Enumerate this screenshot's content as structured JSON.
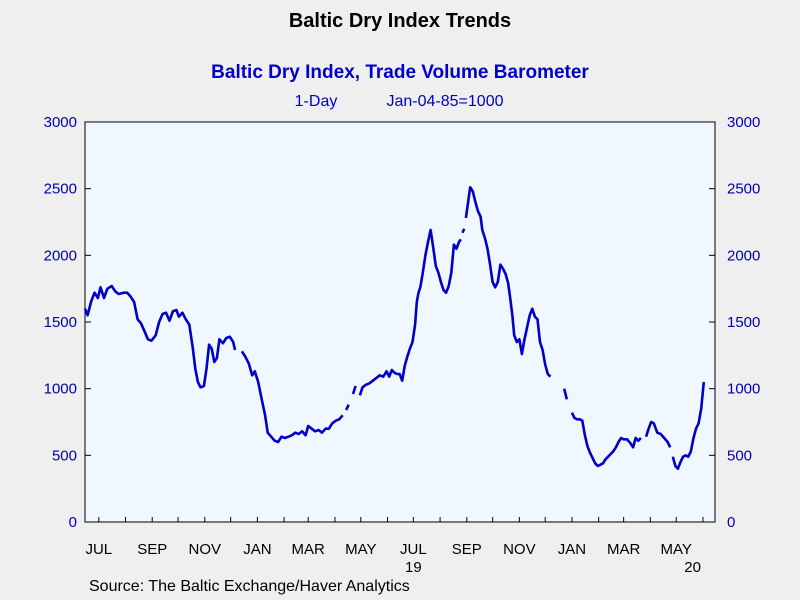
{
  "page": {
    "title": "Baltic Dry Index Trends",
    "source": "Source:  The Baltic Exchange/Haver Analytics"
  },
  "colors": {
    "background": "#efefef",
    "plot_background": "#f0f7ff",
    "series": "#0000c8",
    "title": "#000000",
    "axis_text": "#0000aa",
    "label_text": "#000000"
  },
  "chart_data": {
    "type": "line",
    "title": "Baltic Dry Index, Trade Volume Barometer",
    "subtitle_freq": "1-Day",
    "subtitle_base": "Jan-04-85=1000",
    "xlabel": "",
    "ylabel": "",
    "ylim": [
      0,
      3000
    ],
    "yticks": [
      0,
      500,
      1000,
      1500,
      2000,
      2500,
      3000
    ],
    "dual_y_axis": true,
    "grid": false,
    "legend": "none",
    "x_range": [
      "2018-06-15",
      "2020-06-15"
    ],
    "x_tick_labels": [
      {
        "label": "JUL",
        "date": "2018-07-01"
      },
      {
        "label": "SEP",
        "date": "2018-09-01"
      },
      {
        "label": "NOV",
        "date": "2018-11-01"
      },
      {
        "label": "JAN",
        "date": "2019-01-01"
      },
      {
        "label": "MAR",
        "date": "2019-03-01"
      },
      {
        "label": "MAY",
        "date": "2019-05-01"
      },
      {
        "label": "JUL",
        "date": "2019-07-01"
      },
      {
        "label": "SEP",
        "date": "2019-09-01"
      },
      {
        "label": "NOV",
        "date": "2019-11-01"
      },
      {
        "label": "JAN",
        "date": "2020-01-01"
      },
      {
        "label": "MAR",
        "date": "2020-03-01"
      },
      {
        "label": "MAY",
        "date": "2020-05-01"
      }
    ],
    "year_labels": [
      {
        "label": "19",
        "date": "2019-07-01"
      },
      {
        "label": "20",
        "date": "2020-05-20"
      }
    ],
    "series": [
      {
        "segments": [
          [
            [
              "2018-06-15",
              1600
            ],
            [
              "2018-06-18",
              1550
            ],
            [
              "2018-06-22",
              1650
            ],
            [
              "2018-06-26",
              1720
            ],
            [
              "2018-06-30",
              1680
            ],
            [
              "2018-07-03",
              1760
            ],
            [
              "2018-07-07",
              1680
            ],
            [
              "2018-07-11",
              1750
            ],
            [
              "2018-07-16",
              1770
            ],
            [
              "2018-07-20",
              1730
            ],
            [
              "2018-07-24",
              1710
            ],
            [
              "2018-07-30",
              1720
            ],
            [
              "2018-08-03",
              1720
            ],
            [
              "2018-08-07",
              1690
            ],
            [
              "2018-08-11",
              1650
            ],
            [
              "2018-08-15",
              1520
            ],
            [
              "2018-08-19",
              1490
            ],
            [
              "2018-08-23",
              1430
            ],
            [
              "2018-08-27",
              1370
            ],
            [
              "2018-08-31",
              1360
            ],
            [
              "2018-09-05",
              1400
            ],
            [
              "2018-09-09",
              1500
            ],
            [
              "2018-09-13",
              1560
            ],
            [
              "2018-09-17",
              1570
            ],
            [
              "2018-09-21",
              1510
            ],
            [
              "2018-09-25",
              1580
            ],
            [
              "2018-09-29",
              1590
            ],
            [
              "2018-10-02",
              1540
            ],
            [
              "2018-10-06",
              1570
            ],
            [
              "2018-10-10",
              1520
            ],
            [
              "2018-10-14",
              1480
            ],
            [
              "2018-10-18",
              1310
            ],
            [
              "2018-10-21",
              1150
            ],
            [
              "2018-10-24",
              1050
            ],
            [
              "2018-10-27",
              1010
            ],
            [
              "2018-10-31",
              1020
            ],
            [
              "2018-11-03",
              1150
            ],
            [
              "2018-11-06",
              1330
            ],
            [
              "2018-11-09",
              1300
            ],
            [
              "2018-11-12",
              1200
            ],
            [
              "2018-11-15",
              1230
            ],
            [
              "2018-11-18",
              1370
            ],
            [
              "2018-11-22",
              1340
            ],
            [
              "2018-11-26",
              1380
            ],
            [
              "2018-11-30",
              1390
            ],
            [
              "2018-12-04",
              1350
            ],
            [
              "2018-12-06",
              1290
            ]
          ],
          [
            [
              "2018-12-14",
              1280
            ],
            [
              "2018-12-18",
              1240
            ],
            [
              "2018-12-22",
              1190
            ],
            [
              "2018-12-26",
              1100
            ],
            [
              "2018-12-29",
              1130
            ],
            [
              "2019-01-02",
              1050
            ],
            [
              "2019-01-06",
              920
            ],
            [
              "2019-01-10",
              800
            ],
            [
              "2019-01-13",
              670
            ],
            [
              "2019-01-17",
              640
            ],
            [
              "2019-01-21",
              610
            ],
            [
              "2019-01-25",
              600
            ],
            [
              "2019-01-29",
              640
            ],
            [
              "2019-02-02",
              630
            ],
            [
              "2019-02-06",
              640
            ],
            [
              "2019-02-10",
              650
            ],
            [
              "2019-02-14",
              670
            ],
            [
              "2019-02-18",
              660
            ],
            [
              "2019-02-22",
              680
            ],
            [
              "2019-02-26",
              650
            ],
            [
              "2019-03-01",
              720
            ],
            [
              "2019-03-05",
              700
            ],
            [
              "2019-03-09",
              680
            ],
            [
              "2019-03-13",
              690
            ],
            [
              "2019-03-17",
              670
            ],
            [
              "2019-03-21",
              700
            ],
            [
              "2019-03-25",
              700
            ],
            [
              "2019-03-29",
              740
            ],
            [
              "2019-04-02",
              760
            ],
            [
              "2019-04-06",
              770
            ],
            [
              "2019-04-10",
              800
            ]
          ],
          [
            [
              "2019-04-14",
              840
            ],
            [
              "2019-04-17",
              880
            ]
          ],
          [
            [
              "2019-04-22",
              960
            ],
            [
              "2019-04-25",
              1020
            ]
          ],
          [
            [
              "2019-04-30",
              950
            ],
            [
              "2019-05-03",
              1010
            ],
            [
              "2019-05-07",
              1030
            ],
            [
              "2019-05-11",
              1040
            ],
            [
              "2019-05-15",
              1060
            ],
            [
              "2019-05-19",
              1080
            ],
            [
              "2019-05-23",
              1100
            ],
            [
              "2019-05-27",
              1090
            ],
            [
              "2019-05-31",
              1130
            ],
            [
              "2019-06-03",
              1090
            ],
            [
              "2019-06-06",
              1140
            ],
            [
              "2019-06-09",
              1120
            ],
            [
              "2019-06-12",
              1110
            ],
            [
              "2019-06-15",
              1110
            ],
            [
              "2019-06-18",
              1060
            ],
            [
              "2019-06-21",
              1170
            ],
            [
              "2019-06-24",
              1240
            ],
            [
              "2019-06-27",
              1300
            ],
            [
              "2019-06-30",
              1350
            ],
            [
              "2019-07-03",
              1480
            ],
            [
              "2019-07-05",
              1650
            ],
            [
              "2019-07-07",
              1720
            ],
            [
              "2019-07-09",
              1760
            ],
            [
              "2019-07-12",
              1870
            ],
            [
              "2019-07-15",
              2000
            ],
            [
              "2019-07-18",
              2100
            ],
            [
              "2019-07-21",
              2190
            ],
            [
              "2019-07-24",
              2060
            ],
            [
              "2019-07-27",
              1920
            ],
            [
              "2019-07-30",
              1870
            ],
            [
              "2019-08-02",
              1800
            ],
            [
              "2019-08-05",
              1740
            ],
            [
              "2019-08-08",
              1720
            ],
            [
              "2019-08-11",
              1770
            ],
            [
              "2019-08-14",
              1870
            ],
            [
              "2019-08-17",
              2080
            ],
            [
              "2019-08-20",
              2050
            ],
            [
              "2019-08-23",
              2100
            ],
            [
              "2019-08-25",
              2120
            ]
          ],
          [
            [
              "2019-08-27",
              2170
            ],
            [
              "2019-08-29",
              2200
            ]
          ],
          [
            [
              "2019-08-31",
              2280
            ],
            [
              "2019-09-03",
              2420
            ],
            [
              "2019-09-05",
              2510
            ],
            [
              "2019-09-08",
              2480
            ],
            [
              "2019-09-11",
              2400
            ],
            [
              "2019-09-14",
              2330
            ],
            [
              "2019-09-17",
              2290
            ],
            [
              "2019-09-19",
              2190
            ],
            [
              "2019-09-22",
              2130
            ],
            [
              "2019-09-25",
              2050
            ],
            [
              "2019-09-28",
              1930
            ],
            [
              "2019-10-01",
              1800
            ],
            [
              "2019-10-04",
              1760
            ],
            [
              "2019-10-07",
              1800
            ],
            [
              "2019-10-10",
              1930
            ],
            [
              "2019-10-13",
              1900
            ],
            [
              "2019-10-16",
              1860
            ],
            [
              "2019-10-19",
              1790
            ],
            [
              "2019-10-22",
              1650
            ],
            [
              "2019-10-24",
              1540
            ],
            [
              "2019-10-26",
              1400
            ],
            [
              "2019-10-29",
              1350
            ],
            [
              "2019-11-01",
              1370
            ],
            [
              "2019-11-04",
              1260
            ],
            [
              "2019-11-07",
              1370
            ],
            [
              "2019-11-10",
              1460
            ],
            [
              "2019-11-13",
              1550
            ],
            [
              "2019-11-16",
              1600
            ],
            [
              "2019-11-19",
              1540
            ],
            [
              "2019-11-22",
              1520
            ],
            [
              "2019-11-25",
              1350
            ],
            [
              "2019-11-28",
              1290
            ],
            [
              "2019-12-01",
              1180
            ],
            [
              "2019-12-04",
              1110
            ],
            [
              "2019-12-07",
              1090
            ]
          ],
          [
            [
              "2019-12-23",
              1000
            ],
            [
              "2019-12-26",
              920
            ]
          ],
          [
            [
              "2020-01-01",
              820
            ],
            [
              "2020-01-04",
              780
            ],
            [
              "2020-01-07",
              770
            ],
            [
              "2020-01-10",
              770
            ],
            [
              "2020-01-13",
              760
            ],
            [
              "2020-01-16",
              650
            ],
            [
              "2020-01-19",
              570
            ],
            [
              "2020-01-22",
              520
            ],
            [
              "2020-01-25",
              480
            ],
            [
              "2020-01-28",
              440
            ],
            [
              "2020-01-31",
              420
            ],
            [
              "2020-02-03",
              430
            ],
            [
              "2020-02-06",
              440
            ],
            [
              "2020-02-09",
              470
            ],
            [
              "2020-02-12",
              490
            ],
            [
              "2020-02-15",
              510
            ],
            [
              "2020-02-18",
              530
            ],
            [
              "2020-02-21",
              560
            ],
            [
              "2020-02-24",
              600
            ],
            [
              "2020-02-27",
              630
            ],
            [
              "2020-03-01",
              620
            ],
            [
              "2020-03-05",
              620
            ],
            [
              "2020-03-09",
              590
            ],
            [
              "2020-03-12",
              560
            ],
            [
              "2020-03-15",
              630
            ],
            [
              "2020-03-18",
              610
            ],
            [
              "2020-03-21",
              630
            ]
          ],
          [
            [
              "2020-03-27",
              640
            ],
            [
              "2020-03-30",
              700
            ],
            [
              "2020-04-02",
              750
            ],
            [
              "2020-04-05",
              740
            ],
            [
              "2020-04-09",
              670
            ],
            [
              "2020-04-13",
              660
            ],
            [
              "2020-04-17",
              630
            ],
            [
              "2020-04-21",
              600
            ],
            [
              "2020-04-24",
              560
            ]
          ],
          [
            [
              "2020-04-27",
              490
            ],
            [
              "2020-04-30",
              420
            ],
            [
              "2020-05-03",
              400
            ],
            [
              "2020-05-06",
              450
            ],
            [
              "2020-05-09",
              490
            ],
            [
              "2020-05-12",
              500
            ],
            [
              "2020-05-15",
              490
            ],
            [
              "2020-05-18",
              530
            ],
            [
              "2020-05-21",
              630
            ],
            [
              "2020-05-24",
              700
            ],
            [
              "2020-05-27",
              740
            ],
            [
              "2020-05-30",
              850
            ],
            [
              "2020-06-02",
              1050
            ]
          ]
        ]
      }
    ]
  }
}
